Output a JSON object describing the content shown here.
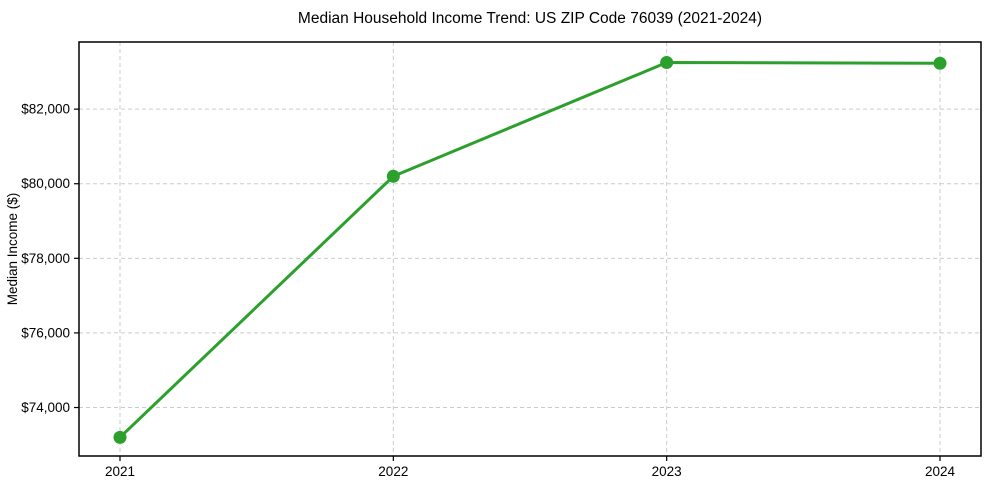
{
  "figure": {
    "background": "#ffffff",
    "text_color": "#000000"
  },
  "chart_data": {
    "type": "line",
    "title": "Median Household Income Trend: US ZIP Code 76039 (2021-2024)",
    "xlabel": "",
    "ylabel": "Median Income ($)",
    "categories": [
      2021,
      2022,
      2023,
      2024
    ],
    "x_tick_labels": [
      "2021",
      "2022",
      "2023",
      "2024"
    ],
    "series": [
      {
        "name": "median-household-income",
        "values": [
          73200,
          80200,
          83250,
          83230
        ],
        "color": "#2ca02c",
        "marker": "circle",
        "line_width": 3
      }
    ],
    "y_ticks": [
      74000,
      76000,
      78000,
      80000,
      82000
    ],
    "y_tick_labels": [
      "$74,000",
      "$76,000",
      "$78,000",
      "$80,000",
      "$82,000"
    ],
    "xlim": [
      2020.85,
      2024.15
    ],
    "ylim": [
      72700,
      83800
    ],
    "grid": true,
    "grid_style": "dashed",
    "grid_color": "#cbcbcb",
    "legend_position": "none"
  }
}
